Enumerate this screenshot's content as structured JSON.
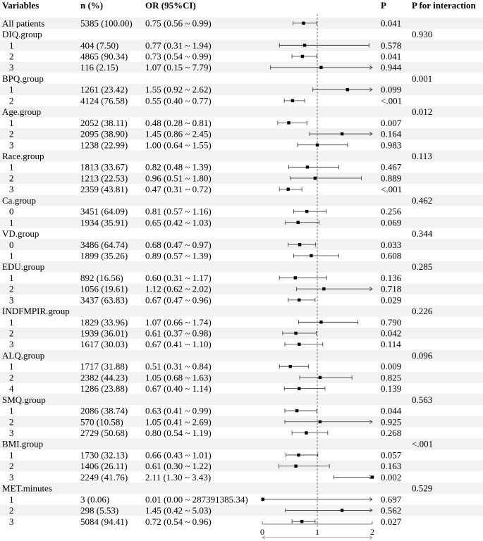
{
  "headers": {
    "variables": "Variables",
    "n": "n (%)",
    "or": "OR (95%CI)",
    "p": "P",
    "p_interaction": "P for interaction"
  },
  "chart_data": {
    "type": "forest",
    "reference_line": 1,
    "xlim": [
      0,
      2
    ],
    "ticks": [
      "0",
      "1",
      "2"
    ],
    "rows": [
      {
        "label": "All patients",
        "n": "5385 (100.00)",
        "or_text": "0.75 (0.56 ~ 0.99)",
        "p": "0.041",
        "p_int": "",
        "or": 0.75,
        "lo": 0.56,
        "hi": 0.99
      },
      {
        "label": "DIQ.group",
        "n": "",
        "or_text": "",
        "p": "",
        "p_int": "0.930"
      },
      {
        "label": "1",
        "indent": true,
        "n": "404 (7.50)",
        "or_text": "0.77 (0.31 ~ 1.94)",
        "p": "0.578",
        "p_int": "",
        "or": 0.77,
        "lo": 0.31,
        "hi": 1.94
      },
      {
        "label": "2",
        "indent": true,
        "n": "4865 (90.34)",
        "or_text": "0.73 (0.54 ~ 0.99)",
        "p": "0.041",
        "p_int": "",
        "or": 0.73,
        "lo": 0.54,
        "hi": 0.99
      },
      {
        "label": "3",
        "indent": true,
        "n": "116 (2.15)",
        "or_text": "1.07 (0.15 ~ 7.79)",
        "p": "0.944",
        "p_int": "",
        "or": 1.07,
        "lo": 0.15,
        "hi": 7.79
      },
      {
        "label": "BPQ.group",
        "n": "",
        "or_text": "",
        "p": "",
        "p_int": "0.001"
      },
      {
        "label": "1",
        "indent": true,
        "n": "1261 (23.42)",
        "or_text": "1.55 (0.92 ~ 2.62)",
        "p": "0.099",
        "p_int": "",
        "or": 1.55,
        "lo": 0.92,
        "hi": 2.62
      },
      {
        "label": "2",
        "indent": true,
        "n": "4124 (76.58)",
        "or_text": "0.55 (0.40 ~ 0.77)",
        "p": "<.001",
        "p_int": "",
        "or": 0.55,
        "lo": 0.4,
        "hi": 0.77
      },
      {
        "label": "Age.group",
        "n": "",
        "or_text": "",
        "p": "",
        "p_int": "0.012"
      },
      {
        "label": "1",
        "indent": true,
        "n": "2052 (38.11)",
        "or_text": "0.48 (0.28 ~ 0.81)",
        "p": "0.007",
        "p_int": "",
        "or": 0.48,
        "lo": 0.28,
        "hi": 0.81
      },
      {
        "label": "2",
        "indent": true,
        "n": "2095 (38.90)",
        "or_text": "1.45 (0.86 ~ 2.45)",
        "p": "0.164",
        "p_int": "",
        "or": 1.45,
        "lo": 0.86,
        "hi": 2.45
      },
      {
        "label": "3",
        "indent": true,
        "n": "1238 (22.99)",
        "or_text": "1.00 (0.64 ~ 1.55)",
        "p": "0.983",
        "p_int": "",
        "or": 1.0,
        "lo": 0.64,
        "hi": 1.55
      },
      {
        "label": "Race.group",
        "n": "",
        "or_text": "",
        "p": "",
        "p_int": "0.113"
      },
      {
        "label": "1",
        "indent": true,
        "n": "1813 (33.67)",
        "or_text": "0.82 (0.48 ~ 1.39)",
        "p": "0.467",
        "p_int": "",
        "or": 0.82,
        "lo": 0.48,
        "hi": 1.39
      },
      {
        "label": "2",
        "indent": true,
        "n": "1213 (22.53)",
        "or_text": "0.96 (0.51 ~ 1.80)",
        "p": "0.889",
        "p_int": "",
        "or": 0.96,
        "lo": 0.51,
        "hi": 1.8
      },
      {
        "label": "3",
        "indent": true,
        "n": "2359 (43.81)",
        "or_text": "0.47 (0.31 ~ 0.72)",
        "p": "<.001",
        "p_int": "",
        "or": 0.47,
        "lo": 0.31,
        "hi": 0.72
      },
      {
        "label": "Ca.group",
        "n": "",
        "or_text": "",
        "p": "",
        "p_int": "0.462"
      },
      {
        "label": "0",
        "indent": true,
        "n": "3451 (64.09)",
        "or_text": "0.81 (0.57 ~ 1.16)",
        "p": "0.256",
        "p_int": "",
        "or": 0.81,
        "lo": 0.57,
        "hi": 1.16
      },
      {
        "label": "1",
        "indent": true,
        "n": "1934 (35.91)",
        "or_text": "0.65 (0.42 ~ 1.03)",
        "p": "0.069",
        "p_int": "",
        "or": 0.65,
        "lo": 0.42,
        "hi": 1.03
      },
      {
        "label": "VD.group",
        "n": "",
        "or_text": "",
        "p": "",
        "p_int": "0.344"
      },
      {
        "label": "0",
        "indent": true,
        "n": "3486 (64.74)",
        "or_text": "0.68 (0.47 ~ 0.97)",
        "p": "0.033",
        "p_int": "",
        "or": 0.68,
        "lo": 0.47,
        "hi": 0.97
      },
      {
        "label": "1",
        "indent": true,
        "n": "1899 (35.26)",
        "or_text": "0.89 (0.57 ~ 1.39)",
        "p": "0.608",
        "p_int": "",
        "or": 0.89,
        "lo": 0.57,
        "hi": 1.39
      },
      {
        "label": "EDU.group",
        "n": "",
        "or_text": "",
        "p": "",
        "p_int": "0.285"
      },
      {
        "label": "1",
        "indent": true,
        "n": "892 (16.56)",
        "or_text": "0.60 (0.31 ~ 1.17)",
        "p": "0.136",
        "p_int": "",
        "or": 0.6,
        "lo": 0.31,
        "hi": 1.17
      },
      {
        "label": "2",
        "indent": true,
        "n": "1056 (19.61)",
        "or_text": "1.12 (0.62 ~ 2.02)",
        "p": "0.718",
        "p_int": "",
        "or": 1.12,
        "lo": 0.62,
        "hi": 2.02
      },
      {
        "label": "3",
        "indent": true,
        "n": "3437 (63.83)",
        "or_text": "0.67 (0.47 ~ 0.96)",
        "p": "0.029",
        "p_int": "",
        "or": 0.67,
        "lo": 0.47,
        "hi": 0.96
      },
      {
        "label": "INDFMPIR.group",
        "n": "",
        "or_text": "",
        "p": "",
        "p_int": "0.226"
      },
      {
        "label": "1",
        "indent": true,
        "n": "1829 (33.96)",
        "or_text": "1.07 (0.66 ~ 1.74)",
        "p": "0.790",
        "p_int": "",
        "or": 1.07,
        "lo": 0.66,
        "hi": 1.74
      },
      {
        "label": "2",
        "indent": true,
        "n": "1939 (36.01)",
        "or_text": "0.61 (0.37 ~ 0.98)",
        "p": "0.042",
        "p_int": "",
        "or": 0.61,
        "lo": 0.37,
        "hi": 0.98
      },
      {
        "label": "3",
        "indent": true,
        "n": "1617 (30.03)",
        "or_text": "0.67 (0.41 ~ 1.10)",
        "p": "0.114",
        "p_int": "",
        "or": 0.67,
        "lo": 0.41,
        "hi": 1.1
      },
      {
        "label": "ALQ.group",
        "n": "",
        "or_text": "",
        "p": "",
        "p_int": "0.096"
      },
      {
        "label": "1",
        "indent": true,
        "n": "1717 (31.88)",
        "or_text": "0.51 (0.31 ~ 0.84)",
        "p": "0.009",
        "p_int": "",
        "or": 0.51,
        "lo": 0.31,
        "hi": 0.84
      },
      {
        "label": "2",
        "indent": true,
        "n": "2382 (44.23)",
        "or_text": "1.05 (0.68 ~ 1.63)",
        "p": "0.825",
        "p_int": "",
        "or": 1.05,
        "lo": 0.68,
        "hi": 1.63
      },
      {
        "label": "4",
        "indent": true,
        "n": "1286 (23.88)",
        "or_text": "0.67 (0.40 ~ 1.14)",
        "p": "0.139",
        "p_int": "",
        "or": 0.67,
        "lo": 0.4,
        "hi": 1.14
      },
      {
        "label": "SMQ.group",
        "n": "",
        "or_text": "",
        "p": "",
        "p_int": "0.563"
      },
      {
        "label": "1",
        "indent": true,
        "n": "2086 (38.74)",
        "or_text": "0.63 (0.41 ~ 0.99)",
        "p": "0.044",
        "p_int": "",
        "or": 0.63,
        "lo": 0.41,
        "hi": 0.99
      },
      {
        "label": "2",
        "indent": true,
        "n": "570 (10.58)",
        "or_text": "1.05 (0.41 ~ 2.69)",
        "p": "0.925",
        "p_int": "",
        "or": 1.05,
        "lo": 0.41,
        "hi": 2.69
      },
      {
        "label": "3",
        "indent": true,
        "n": "2729 (50.68)",
        "or_text": "0.80 (0.54 ~ 1.19)",
        "p": "0.268",
        "p_int": "",
        "or": 0.8,
        "lo": 0.54,
        "hi": 1.19
      },
      {
        "label": "BMI.group",
        "n": "",
        "or_text": "",
        "p": "",
        "p_int": "<.001"
      },
      {
        "label": "1",
        "indent": true,
        "n": "1730 (32.13)",
        "or_text": "0.66 (0.43 ~ 1.01)",
        "p": "0.057",
        "p_int": "",
        "or": 0.66,
        "lo": 0.43,
        "hi": 1.01
      },
      {
        "label": "2",
        "indent": true,
        "n": "1406 (26.11)",
        "or_text": "0.61 (0.30 ~ 1.22)",
        "p": "0.163",
        "p_int": "",
        "or": 0.61,
        "lo": 0.3,
        "hi": 1.22
      },
      {
        "label": "3",
        "indent": true,
        "n": "2249 (41.76)",
        "or_text": "2.11 (1.30 ~ 3.43)",
        "p": "0.002",
        "p_int": "",
        "or": 2.11,
        "lo": 1.3,
        "hi": 3.43
      },
      {
        "label": "MET.minutes",
        "n": "",
        "or_text": "",
        "p": "",
        "p_int": "0.529"
      },
      {
        "label": "1",
        "indent": true,
        "n": "3 (0.06)",
        "or_text": "0.01 (0.00 ~ 287391385.34)",
        "p": "0.697",
        "p_int": "",
        "or": 0.01,
        "lo": 0.0,
        "hi": 287391385.34
      },
      {
        "label": "2",
        "indent": true,
        "n": "298 (5.53)",
        "or_text": "1.45 (0.42 ~ 5.03)",
        "p": "0.562",
        "p_int": "",
        "or": 1.45,
        "lo": 0.42,
        "hi": 5.03
      },
      {
        "label": "3",
        "indent": true,
        "n": "5084 (94.41)",
        "or_text": "0.72 (0.54 ~ 0.96)",
        "p": "0.027",
        "p_int": "",
        "or": 0.72,
        "lo": 0.54,
        "hi": 0.96
      }
    ]
  }
}
